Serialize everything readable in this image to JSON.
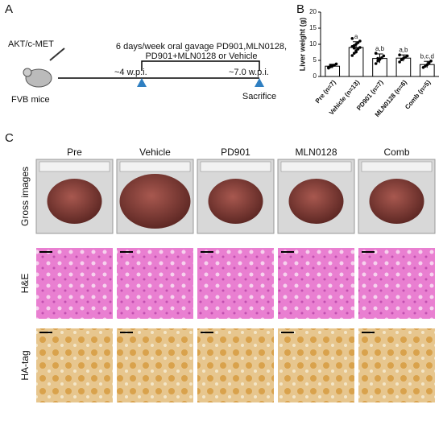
{
  "panels": {
    "a": "A",
    "b": "B",
    "c": "C"
  },
  "timeline": {
    "model": "AKT/c-MET",
    "mouse": "FVB mice",
    "treatment": [
      "6 days/week oral gavage PD901,MLN0128,",
      "PD901+MLN0128 or Vehicle"
    ],
    "start": "~4 w.p.i.",
    "end": "~7.0 w.p.i.",
    "end_label": "Sacrifice"
  },
  "chart_data": {
    "type": "bar",
    "y_label": "Liver weight (g)",
    "categories": [
      "Pre (n=7)",
      "Vehicle (n=13)",
      "PD901 (n=7)",
      "MLN0128 (n=6)",
      "Comb (n=5)"
    ],
    "values": [
      3.2,
      9.0,
      5.6,
      5.7,
      3.7
    ],
    "errors": [
      0.6,
      1.8,
      1.4,
      1.0,
      1.0
    ],
    "points": [
      [
        2.6,
        3.0,
        3.3,
        3.5,
        3.9,
        2.8,
        3.4
      ],
      [
        6.5,
        7.2,
        8.0,
        8.5,
        9.0,
        9.3,
        9.6,
        10.0,
        10.5,
        11.0,
        11.8,
        8.8,
        7.6
      ],
      [
        4.0,
        4.8,
        5.3,
        5.8,
        6.4,
        7.2,
        5.6
      ],
      [
        4.5,
        5.2,
        5.6,
        6.0,
        6.4,
        6.7
      ],
      [
        2.8,
        3.2,
        3.6,
        4.2,
        4.8
      ]
    ],
    "annotations": [
      null,
      "a",
      "a,b",
      "a,b",
      "b,c,d"
    ],
    "color": "#ffffff",
    "ylim": [
      0,
      20
    ],
    "yticks": [
      0,
      5,
      10,
      15,
      20
    ]
  },
  "image_grid": {
    "columns": [
      "Pre",
      "Vehicle",
      "PD901",
      "MLN0128",
      "Comb"
    ],
    "rows": [
      "Gross images",
      "H&E",
      "HA-tag"
    ]
  }
}
